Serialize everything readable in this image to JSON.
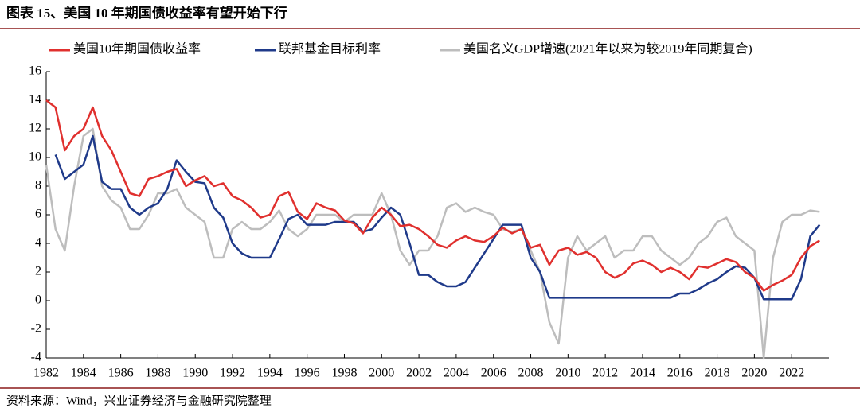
{
  "chart_data": {
    "type": "line",
    "title": "图表 15、美国 10 年期国债收益率有望开始下行",
    "source": "资料来源：Wind，兴业证券经济与金融研究院整理",
    "x": [
      1982,
      1982.5,
      1983,
      1983.5,
      1984,
      1984.5,
      1985,
      1985.5,
      1986,
      1986.5,
      1987,
      1987.5,
      1988,
      1988.5,
      1989,
      1989.5,
      1990,
      1990.5,
      1991,
      1991.5,
      1992,
      1992.5,
      1993,
      1993.5,
      1994,
      1994.5,
      1995,
      1995.5,
      1996,
      1996.5,
      1997,
      1997.5,
      1998,
      1998.5,
      1999,
      1999.5,
      2000,
      2000.5,
      2001,
      2001.5,
      2002,
      2002.5,
      2003,
      2003.5,
      2004,
      2004.5,
      2005,
      2005.5,
      2006,
      2006.5,
      2007,
      2007.5,
      2008,
      2008.5,
      2009,
      2009.5,
      2010,
      2010.5,
      2011,
      2011.5,
      2012,
      2012.5,
      2013,
      2013.5,
      2014,
      2014.5,
      2015,
      2015.5,
      2016,
      2016.5,
      2017,
      2017.5,
      2018,
      2018.5,
      2019,
      2019.5,
      2020,
      2020.5,
      2021,
      2021.5,
      2022,
      2022.5,
      2023,
      2023.5
    ],
    "series": [
      {
        "name": "美国10年期国债收益率",
        "color": "#e0302e",
        "values": [
          14.0,
          13.5,
          10.5,
          11.5,
          12.0,
          13.5,
          11.5,
          10.5,
          9.0,
          7.5,
          7.3,
          8.5,
          8.7,
          9.0,
          9.2,
          8.0,
          8.4,
          8.7,
          8.0,
          8.2,
          7.3,
          7.0,
          6.5,
          5.8,
          6.0,
          7.3,
          7.6,
          6.2,
          5.7,
          6.8,
          6.5,
          6.3,
          5.6,
          5.4,
          4.7,
          5.8,
          6.5,
          6.0,
          5.2,
          5.3,
          5.0,
          4.5,
          3.9,
          3.7,
          4.2,
          4.5,
          4.2,
          4.1,
          4.5,
          5.1,
          4.7,
          5.0,
          3.7,
          3.9,
          2.5,
          3.5,
          3.7,
          3.2,
          3.4,
          3.0,
          2.0,
          1.6,
          1.9,
          2.6,
          2.8,
          2.5,
          2.0,
          2.3,
          2.0,
          1.5,
          2.4,
          2.3,
          2.6,
          2.9,
          2.7,
          2.0,
          1.6,
          0.7,
          1.1,
          1.4,
          1.8,
          3.0,
          3.8,
          4.2
        ]
      },
      {
        "name": "联邦基金目标利率",
        "color": "#1f3a8a",
        "values": [
          null,
          10.2,
          8.5,
          9.0,
          9.5,
          11.5,
          8.3,
          7.8,
          7.8,
          6.5,
          6.0,
          6.5,
          6.8,
          7.8,
          9.8,
          9.0,
          8.3,
          8.2,
          6.5,
          5.8,
          4.0,
          3.3,
          3.0,
          3.0,
          3.0,
          4.3,
          5.7,
          6.0,
          5.3,
          5.3,
          5.3,
          5.5,
          5.5,
          5.5,
          4.8,
          5.0,
          5.8,
          6.5,
          6.0,
          4.0,
          1.8,
          1.8,
          1.3,
          1.0,
          1.0,
          1.3,
          2.3,
          3.3,
          4.3,
          5.3,
          5.3,
          5.3,
          3.0,
          2.0,
          0.2,
          0.2,
          0.2,
          0.2,
          0.2,
          0.2,
          0.2,
          0.2,
          0.2,
          0.2,
          0.2,
          0.2,
          0.2,
          0.2,
          0.5,
          0.5,
          0.8,
          1.2,
          1.5,
          2.0,
          2.4,
          2.3,
          1.6,
          0.1,
          0.1,
          0.1,
          0.1,
          1.5,
          4.5,
          5.3
        ]
      },
      {
        "name": "美国名义GDP增速(2021年以来为较2019年同期复合)",
        "color": "#bdbdbd",
        "values": [
          9.5,
          5.0,
          3.5,
          8.0,
          11.5,
          12.0,
          8.0,
          7.0,
          6.5,
          5.0,
          5.0,
          6.0,
          7.5,
          7.5,
          7.8,
          6.5,
          6.0,
          5.5,
          3.0,
          3.0,
          5.0,
          5.5,
          5.0,
          5.0,
          5.5,
          6.3,
          5.0,
          4.5,
          5.0,
          6.0,
          6.0,
          6.0,
          5.5,
          6.0,
          6.0,
          6.0,
          7.5,
          6.0,
          3.5,
          2.5,
          3.5,
          3.5,
          4.5,
          6.5,
          6.8,
          6.2,
          6.5,
          6.2,
          6.0,
          5.0,
          4.8,
          5.0,
          3.5,
          2.0,
          -1.5,
          -3.0,
          3.0,
          4.5,
          3.5,
          4.0,
          4.5,
          3.0,
          3.5,
          3.5,
          4.5,
          4.5,
          3.5,
          3.0,
          2.5,
          3.0,
          4.0,
          4.5,
          5.5,
          5.8,
          4.5,
          4.0,
          3.5,
          -4.0,
          3.0,
          5.5,
          6.0,
          6.0,
          6.3,
          6.2
        ]
      }
    ],
    "xlim": [
      1982,
      2024
    ],
    "xticks": [
      1982,
      1984,
      1986,
      1988,
      1990,
      1992,
      1994,
      1996,
      1998,
      2000,
      2002,
      2004,
      2006,
      2008,
      2010,
      2012,
      2014,
      2016,
      2018,
      2020,
      2022
    ],
    "ylim": [
      -4,
      16
    ],
    "yticks": [
      -4,
      -2,
      0,
      2,
      4,
      6,
      8,
      10,
      12,
      14,
      16
    ]
  }
}
